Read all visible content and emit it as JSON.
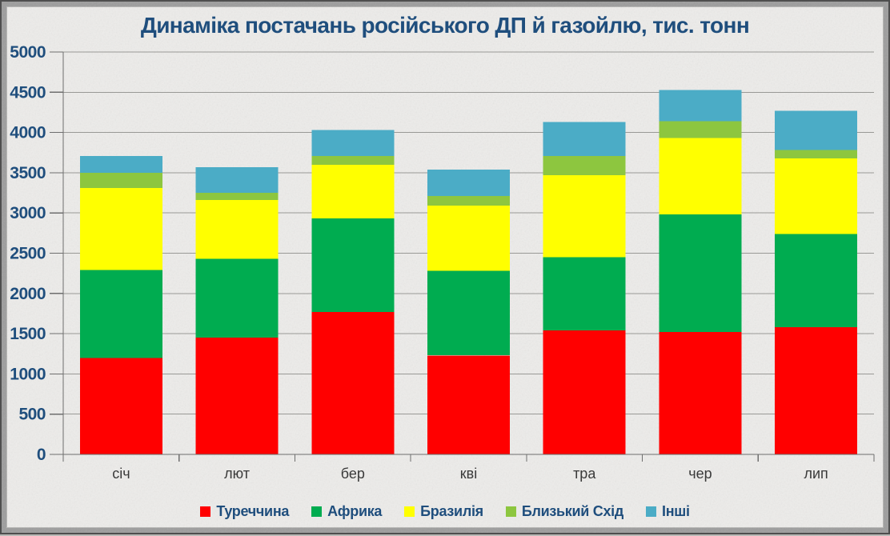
{
  "title": "Динаміка постачань російського ДП й газойлю, тис. тонн",
  "chart_data": {
    "type": "bar",
    "stacked": true,
    "title": "Динаміка постачань російського ДП й газойлю, тис. тонн",
    "xlabel": "",
    "ylabel": "",
    "categories": [
      "січ",
      "лют",
      "бер",
      "кві",
      "тра",
      "чер",
      "лип"
    ],
    "series": [
      {
        "name": "Туреччина",
        "color": "#FF0000",
        "values": [
          1200,
          1450,
          1770,
          1230,
          1540,
          1520,
          1580
        ]
      },
      {
        "name": "Африка",
        "color": "#00AC50",
        "values": [
          1090,
          980,
          1160,
          1050,
          910,
          1460,
          1160
        ]
      },
      {
        "name": "Бразилія",
        "color": "#FFFF00",
        "values": [
          1020,
          730,
          670,
          810,
          1020,
          950,
          940
        ]
      },
      {
        "name": "Близький Схід",
        "color": "#8DC63F",
        "values": [
          190,
          90,
          110,
          120,
          240,
          210,
          100
        ]
      },
      {
        "name": "Інші",
        "color": "#4BACC6",
        "values": [
          210,
          320,
          320,
          330,
          420,
          390,
          490
        ]
      }
    ],
    "totals": [
      3710,
      3570,
      4030,
      3540,
      4130,
      4530,
      4270
    ],
    "ylim": [
      0,
      5000
    ],
    "ytick_step": 500,
    "yticks": [
      "0",
      "500",
      "1000",
      "1500",
      "2000",
      "2500",
      "3000",
      "3500",
      "4000",
      "4500",
      "5000"
    ],
    "grid": true,
    "legend_position": "bottom",
    "accent_color": "#1F4E7D",
    "grid_color": "#999996",
    "axis_color": "#6E6E6E",
    "category_label_color": "#3A3A3A"
  }
}
